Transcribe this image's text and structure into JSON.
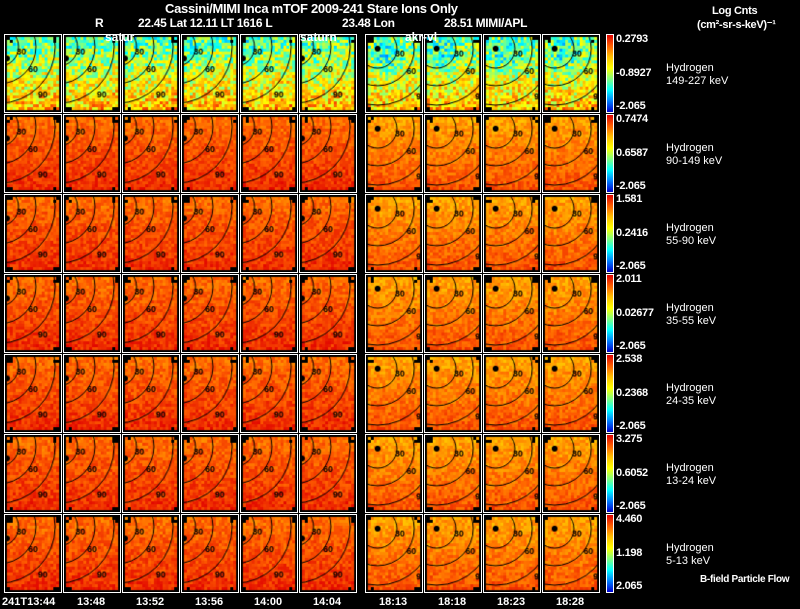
{
  "header": {
    "title": "Cassini/MIMI Inca mTOF  2009-241   Stare   Ions Only",
    "subtitle_r": "R",
    "subtitle_pos": "22.45 Lat 12.11 LT 1616 L",
    "subtitle_lon": "23.48 Lon",
    "subtitle_src": "28.51   MIMI/APL",
    "units_line1": "Log Cnts",
    "units_line2": "(cm²-sr-s-keV)⁻¹"
  },
  "overlays": [
    "satur",
    "saturn",
    "akr-vl"
  ],
  "footer_note": "B-field Particle Flow",
  "chart_data": {
    "type": "heatmap",
    "title": "Cassini/MIMI Inca mTOF  2009-241   Stare   Ions Only",
    "columns": [
      "241T13:44",
      "13:48",
      "13:52",
      "13:56",
      "14:00",
      "14:04",
      "18:13",
      "18:18",
      "18:23",
      "18:28"
    ],
    "contour_labels": [
      "30",
      "60",
      "90"
    ],
    "rows": [
      {
        "species": "Hydrogen",
        "energy": "149-227 keV",
        "max": "0.2793",
        "mid": "-0.8927",
        "min": "-2.065"
      },
      {
        "species": "Hydrogen",
        "energy": "90-149 keV",
        "max": "0.7474",
        "mid": "0.6587",
        "min": "-2.065"
      },
      {
        "species": "Hydrogen",
        "energy": "55-90 keV",
        "max": "1.581",
        "mid": "0.2416",
        "min": "-2.065"
      },
      {
        "species": "Hydrogen",
        "energy": "35-55 keV",
        "max": "2.011",
        "mid": "0.02677",
        "min": "-2.065"
      },
      {
        "species": "Hydrogen",
        "energy": "24-35 keV",
        "max": "2.538",
        "mid": "0.2368",
        "min": "-2.065"
      },
      {
        "species": "Hydrogen",
        "energy": "13-24 keV",
        "max": "3.275",
        "mid": "0.6052",
        "min": "-2.065"
      },
      {
        "species": "Hydrogen",
        "energy": "5-13 keV",
        "max": "4.460",
        "mid": "1.198",
        "min": "2.065"
      }
    ]
  }
}
